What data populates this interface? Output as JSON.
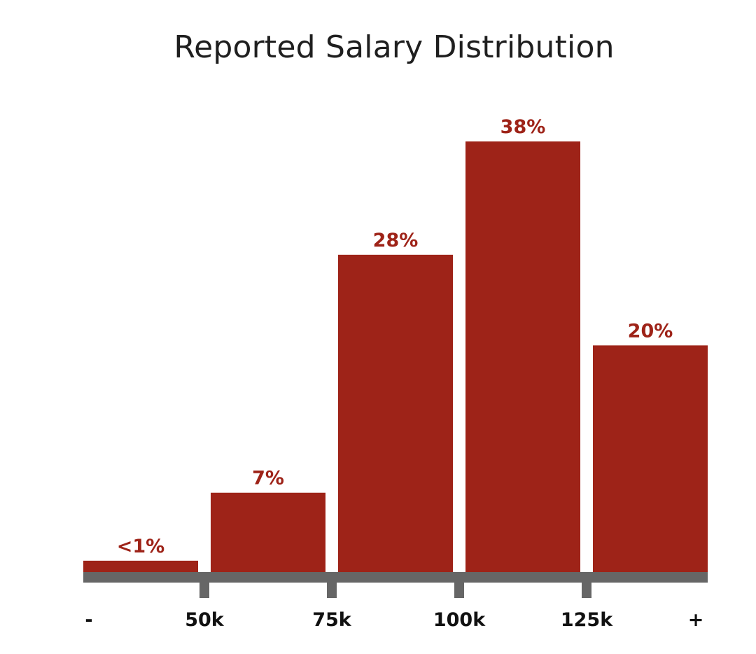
{
  "chart_data": {
    "type": "bar",
    "title": "Reported Salary Distribution",
    "xlabel": "",
    "ylabel": "",
    "categories": [
      "- to 50k",
      "50k to 75k",
      "75k to 100k",
      "100k to 125k",
      "125k to +"
    ],
    "values": [
      1,
      7,
      28,
      38,
      20
    ],
    "data_labels": [
      "<1%",
      "7%",
      "28%",
      "38%",
      "20%"
    ],
    "tick_labels": [
      "-",
      "50k",
      "75k",
      "100k",
      "125k",
      "+"
    ],
    "ylim": [
      0,
      38
    ],
    "grid": false,
    "legend": "none",
    "colors": {
      "bar": "#9e2318",
      "data_label": "#9e2318",
      "axis": "#666666",
      "tick_label": "#111111"
    }
  }
}
